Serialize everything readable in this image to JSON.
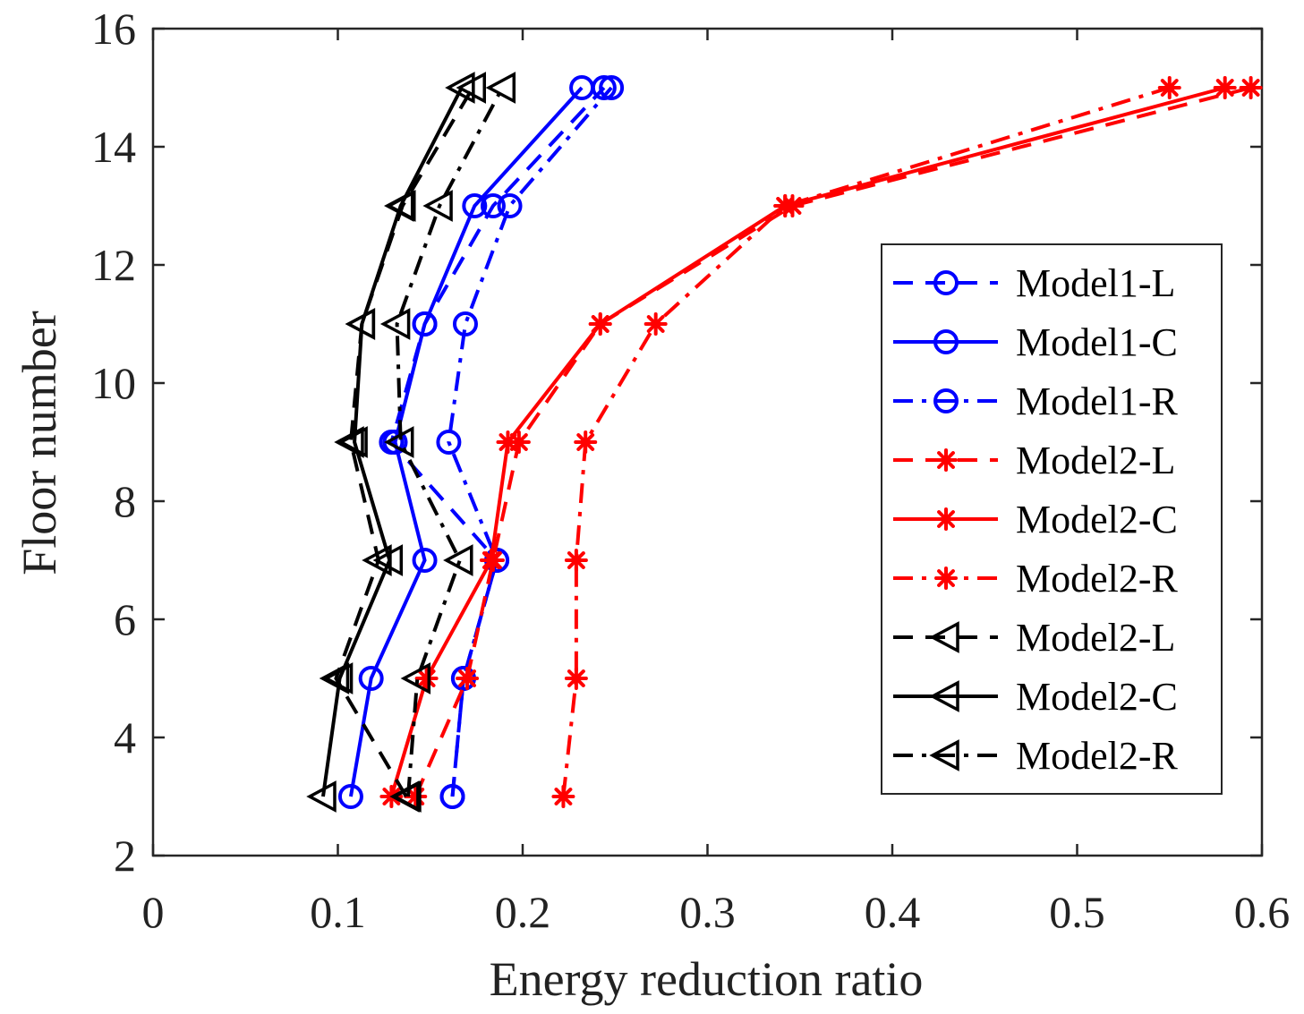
{
  "chart_data": {
    "type": "line",
    "title": "",
    "xlabel": "Energy reduction ratio",
    "ylabel": "Floor number",
    "xlim": [
      0,
      0.6
    ],
    "ylim": [
      2,
      16
    ],
    "xticks": [
      "0",
      "0.1",
      "0.2",
      "0.3",
      "0.4",
      "0.5",
      "0.6"
    ],
    "yticks": [
      "2",
      "4",
      "6",
      "8",
      "10",
      "12",
      "14",
      "16"
    ],
    "grid": false,
    "legend_position": "right",
    "y": [
      3,
      5,
      7,
      9,
      11,
      13,
      15
    ],
    "series": [
      {
        "name": "Model1-L",
        "color": "#0000ff",
        "dash": "dashed",
        "marker": "circle",
        "x": [
          0.162,
          0.168,
          0.186,
          0.129,
          0.147,
          0.184,
          0.244
        ]
      },
      {
        "name": "Model1-C",
        "color": "#0000ff",
        "dash": "solid",
        "marker": "circle",
        "x": [
          0.107,
          0.118,
          0.147,
          0.131,
          0.147,
          0.174,
          0.232
        ]
      },
      {
        "name": "Model1-R",
        "color": "#0000ff",
        "dash": "dashdot",
        "marker": "circle",
        "x": [
          0.162,
          0.168,
          0.186,
          0.16,
          0.169,
          0.193,
          0.248
        ]
      },
      {
        "name": "Model2-L",
        "color": "#ff0000",
        "dash": "dashed",
        "marker": "star",
        "x": [
          0.142,
          0.17,
          0.184,
          0.198,
          0.242,
          0.346,
          0.594
        ]
      },
      {
        "name": "Model2-C",
        "color": "#ff0000",
        "dash": "solid",
        "marker": "star",
        "x": [
          0.129,
          0.148,
          0.183,
          0.192,
          0.242,
          0.342,
          0.58
        ]
      },
      {
        "name": "Model2-R",
        "color": "#ff0000",
        "dash": "dashdot",
        "marker": "star",
        "x": [
          0.222,
          0.229,
          0.229,
          0.234,
          0.272,
          0.342,
          0.55
        ]
      },
      {
        "name": "Model2-L",
        "color": "#000000",
        "dash": "dashed",
        "marker": "triangle-left",
        "x": [
          0.137,
          0.099,
          0.122,
          0.107,
          0.113,
          0.135,
          0.173
        ]
      },
      {
        "name": "Model2-C",
        "color": "#000000",
        "dash": "solid",
        "marker": "triangle-left",
        "x": [
          0.092,
          0.101,
          0.128,
          0.109,
          0.113,
          0.134,
          0.167
        ]
      },
      {
        "name": "Model2-R",
        "color": "#000000",
        "dash": "dashdot",
        "marker": "triangle-left",
        "x": [
          0.138,
          0.143,
          0.166,
          0.134,
          0.132,
          0.155,
          0.189
        ]
      }
    ]
  }
}
